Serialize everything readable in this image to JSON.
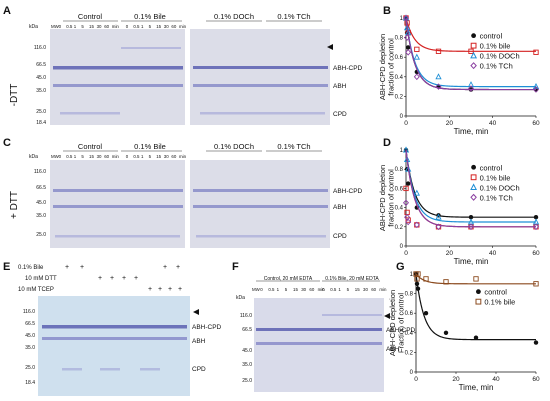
{
  "panels": {
    "A": {
      "letter": "A",
      "side_label": "-DTT",
      "kda": "kDa",
      "mw_markers": [
        "116.0",
        "66.5",
        "45.0",
        "35.0",
        "25.0",
        "18.4"
      ],
      "groups": [
        "Control",
        "0.1% Bile",
        "0.1% DOCh",
        "0.1% TCh"
      ],
      "lane_header": [
        "MW",
        "0",
        "0.5",
        "1",
        "5",
        "15",
        "30",
        "60",
        "min"
      ],
      "band_labels": [
        "ABH-CPD",
        "ABH",
        "CPD"
      ]
    },
    "C": {
      "letter": "C",
      "side_label": "+ DTT",
      "kda": "kDa",
      "mw_markers": [
        "116.0",
        "66.5",
        "45.0",
        "35.0",
        "25.0"
      ],
      "groups": [
        "Control",
        "0.1% Bile",
        "0.1% DOCh",
        "0.1% TCh"
      ],
      "lane_header": [
        "MW",
        "0",
        "0.5",
        "1",
        "5",
        "15",
        "30",
        "60",
        "min"
      ],
      "band_labels": [
        "ABH-CPD",
        "ABH",
        "CPD"
      ]
    },
    "E": {
      "letter": "E",
      "conditions": [
        "0.1% Bile",
        "10 mM DTT",
        "10 mM TCEP"
      ],
      "mw_markers": [
        "116.0",
        "66.5",
        "45.0",
        "35.0",
        "25.0",
        "18.4"
      ],
      "band_labels": [
        "ABH-CPD",
        "ABH",
        "CPD"
      ]
    },
    "F": {
      "letter": "F",
      "kda": "kDa",
      "groups": [
        "Control, 20 mM EDTA",
        "0.1% Bile, 20 mM EDTA"
      ],
      "lane_header": [
        "MW",
        "0",
        "0.5",
        "1",
        "5",
        "15",
        "30",
        "60",
        "min"
      ],
      "mw_markers": [
        "116.0",
        "66.5",
        "45.0",
        "35.0",
        "25.0"
      ],
      "band_labels": [
        "ABH-CPD",
        "ABH"
      ]
    }
  },
  "chart_data": [
    {
      "panel": "B",
      "type": "scatter",
      "ylabel": "ABH-CPD depletion fraction of control",
      "xlabel": "Time, min",
      "xlim": [
        0,
        60
      ],
      "ylim": [
        0,
        1
      ],
      "xticks": [
        "0",
        "20",
        "40",
        "60"
      ],
      "yticks": [
        "0",
        "0.2",
        "0.4",
        "0.6",
        "0.8",
        "1"
      ],
      "legend_position": "right",
      "series": [
        {
          "name": "control",
          "color": "#111111",
          "marker": "circle",
          "x": [
            0,
            0.5,
            1,
            5,
            15,
            30,
            60
          ],
          "y": [
            1.0,
            0.85,
            0.7,
            0.45,
            0.3,
            0.27,
            0.27
          ],
          "fit_plateau": 0.27
        },
        {
          "name": "0.1% bile",
          "color": "#d42020",
          "marker": "square",
          "x": [
            0,
            0.5,
            1,
            5,
            15,
            30,
            60
          ],
          "y": [
            1.0,
            0.95,
            0.85,
            0.68,
            0.66,
            0.66,
            0.65
          ],
          "fit_plateau": 0.66
        },
        {
          "name": "0.1% DOCh",
          "color": "#1e8fd6",
          "marker": "triangle",
          "x": [
            0,
            0.5,
            1,
            5,
            15,
            30,
            60
          ],
          "y": [
            1.0,
            0.9,
            0.85,
            0.6,
            0.4,
            0.32,
            0.3
          ],
          "fit_plateau": 0.3
        },
        {
          "name": "0.1% TCh",
          "color": "#8a3fa0",
          "marker": "diamond",
          "x": [
            0,
            0.5,
            1,
            5,
            15,
            30,
            60
          ],
          "y": [
            1.0,
            0.8,
            0.65,
            0.4,
            0.3,
            0.28,
            0.27
          ],
          "fit_plateau": 0.27
        }
      ]
    },
    {
      "panel": "D",
      "type": "scatter",
      "ylabel": "ABH-CPD depletion fraction of control",
      "xlabel": "Time, min",
      "xlim": [
        0,
        60
      ],
      "ylim": [
        0,
        1
      ],
      "xticks": [
        "0",
        "20",
        "40",
        "60"
      ],
      "yticks": [
        "0",
        "0.2",
        "0.4",
        "0.6",
        "0.8",
        "1"
      ],
      "legend_position": "right",
      "series": [
        {
          "name": "control",
          "color": "#111111",
          "marker": "circle",
          "x": [
            0,
            0.5,
            1,
            5,
            15,
            30,
            60
          ],
          "y": [
            1.0,
            0.8,
            0.65,
            0.4,
            0.32,
            0.3,
            0.3
          ],
          "fit_plateau": 0.3
        },
        {
          "name": "0.1% bile",
          "color": "#d42020",
          "marker": "square",
          "x": [
            0,
            0.5,
            1,
            5,
            15,
            30,
            60
          ],
          "y": [
            0.6,
            0.35,
            0.27,
            0.22,
            0.2,
            0.2,
            0.2
          ],
          "fit_plateau": 0.2
        },
        {
          "name": "0.1% DOCh",
          "color": "#1e8fd6",
          "marker": "triangle",
          "x": [
            0,
            0.5,
            1,
            5,
            15,
            30,
            60
          ],
          "y": [
            1.0,
            0.9,
            0.8,
            0.55,
            0.3,
            0.25,
            0.25
          ],
          "fit_plateau": 0.25
        },
        {
          "name": "0.1% TCh",
          "color": "#8a3fa0",
          "marker": "diamond",
          "x": [
            0,
            0.5,
            1,
            5,
            15,
            30,
            60
          ],
          "y": [
            0.45,
            0.3,
            0.25,
            0.22,
            0.2,
            0.2,
            0.2
          ],
          "fit_plateau": 0.2
        }
      ]
    },
    {
      "panel": "G",
      "type": "scatter",
      "ylabel": "ABH-CPD depletion Fraction of control",
      "xlabel": "Time, min",
      "xlim": [
        0,
        60
      ],
      "ylim": [
        0,
        1
      ],
      "xticks": [
        "0",
        "20",
        "40",
        "60"
      ],
      "yticks": [
        "0",
        "0.2",
        "0.4",
        "0.6",
        "0.8",
        "1"
      ],
      "legend_position": "right",
      "series": [
        {
          "name": "control",
          "color": "#111111",
          "marker": "circle",
          "x": [
            0,
            0.5,
            1,
            5,
            15,
            30,
            60
          ],
          "y": [
            1.0,
            0.9,
            0.85,
            0.6,
            0.4,
            0.35,
            0.3
          ],
          "fit_plateau": 0.33
        },
        {
          "name": "0.1% bile",
          "color": "#8b4a1e",
          "marker": "square",
          "x": [
            0,
            0.5,
            1,
            5,
            15,
            30,
            60
          ],
          "y": [
            1.0,
            0.95,
            1.0,
            0.95,
            0.92,
            0.95,
            0.9
          ],
          "fit_plateau": 0.9
        }
      ]
    }
  ]
}
